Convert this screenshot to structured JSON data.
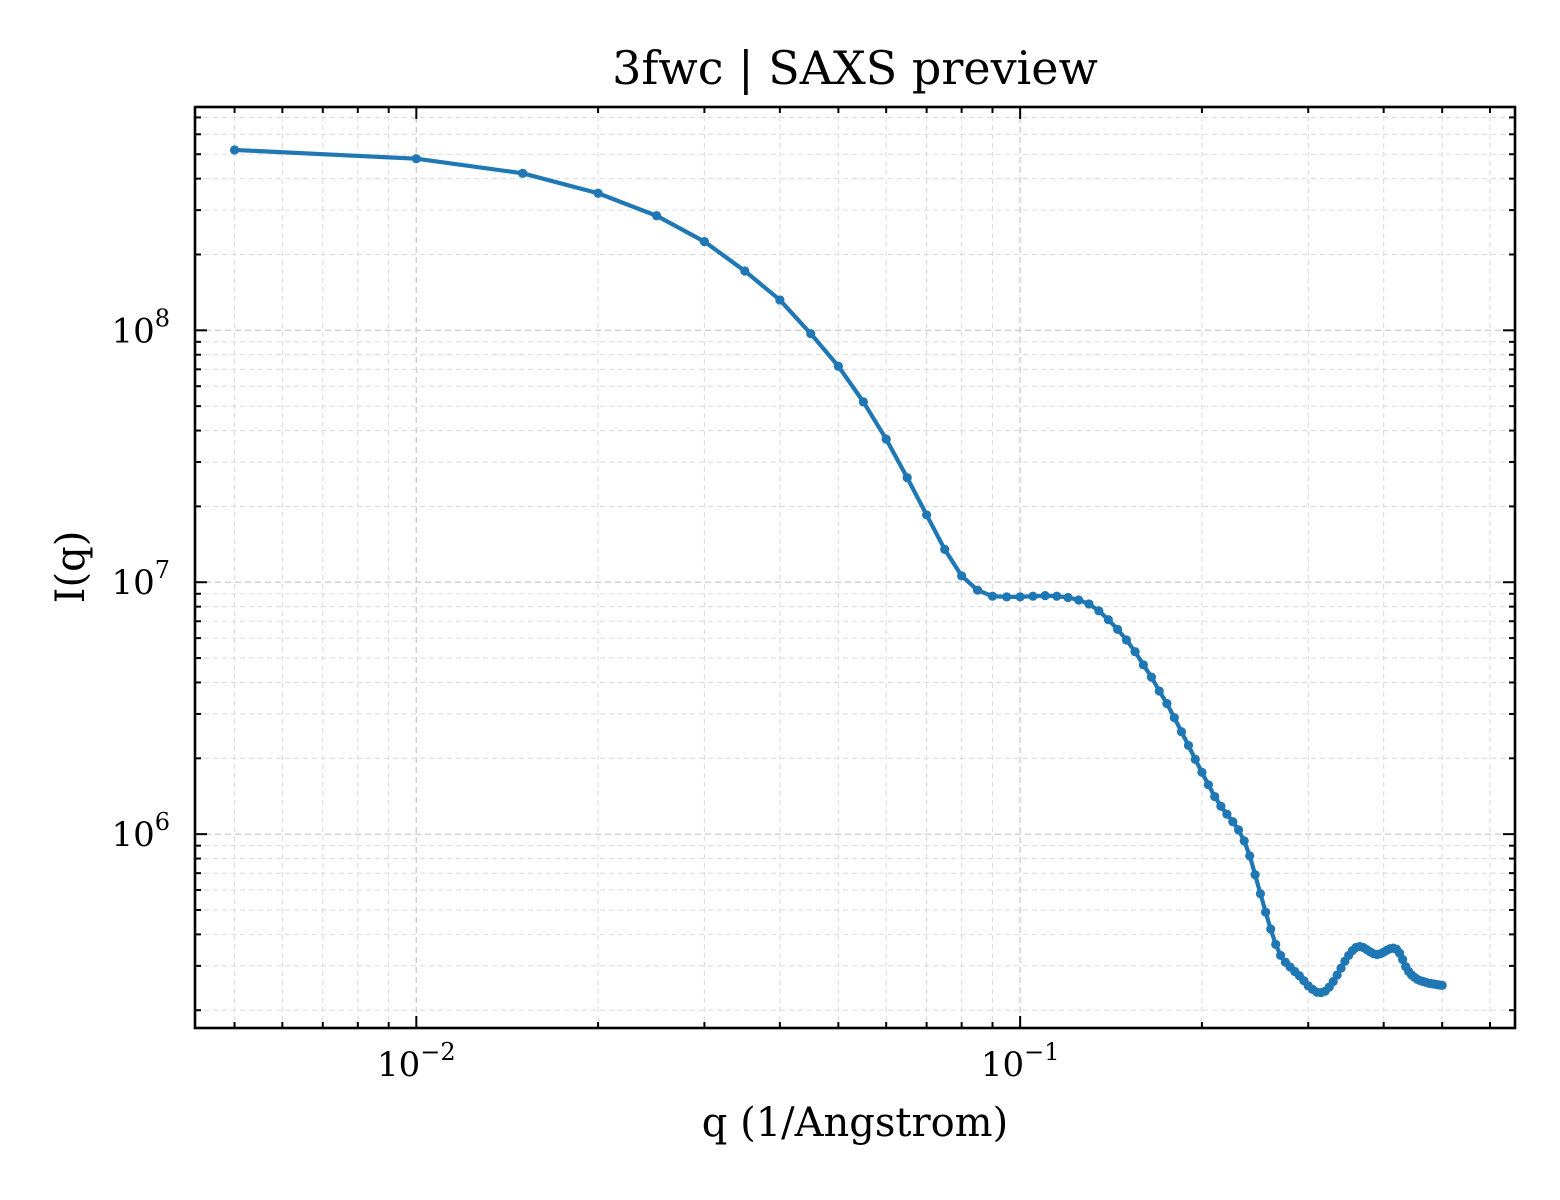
{
  "chart_data": {
    "type": "line",
    "title": "3fwc | SAXS preview",
    "xlabel": "q (1/Angstrom)",
    "ylabel": "I(q)",
    "xscale": "log",
    "yscale": "log",
    "xlim": [
      0.0043,
      0.66
    ],
    "ylim": [
      170000,
      770000000
    ],
    "grid": true,
    "x_tick_labels": [
      {
        "value": 0.01,
        "base": "10",
        "exp": "−2"
      },
      {
        "value": 0.1,
        "base": "10",
        "exp": "−1"
      }
    ],
    "y_tick_labels": [
      {
        "value": 1000000,
        "base": "10",
        "exp": "6"
      },
      {
        "value": 10000000,
        "base": "10",
        "exp": "7"
      },
      {
        "value": 100000000,
        "base": "10",
        "exp": "8"
      }
    ],
    "series_color": "#1f77b4",
    "series": [
      {
        "x": [
          0.005,
          0.01,
          0.015,
          0.02,
          0.025,
          0.03,
          0.035,
          0.04,
          0.045,
          0.05,
          0.055,
          0.06,
          0.065,
          0.07,
          0.075,
          0.08,
          0.085,
          0.09,
          0.095,
          0.1,
          0.105,
          0.11,
          0.115,
          0.12,
          0.125,
          0.13,
          0.135,
          0.14,
          0.145,
          0.15,
          0.155,
          0.16,
          0.165,
          0.17,
          0.175,
          0.18,
          0.185,
          0.19,
          0.195,
          0.2,
          0.205,
          0.21,
          0.215,
          0.22,
          0.225,
          0.23,
          0.235,
          0.24,
          0.245,
          0.25,
          0.255,
          0.26,
          0.265,
          0.27,
          0.275,
          0.28,
          0.285,
          0.29,
          0.295,
          0.3,
          0.305,
          0.31,
          0.315,
          0.32,
          0.325,
          0.33,
          0.335,
          0.34,
          0.345,
          0.35,
          0.355,
          0.36,
          0.365,
          0.37,
          0.375,
          0.38,
          0.385,
          0.39,
          0.395,
          0.4,
          0.405,
          0.41,
          0.415,
          0.42,
          0.425,
          0.43,
          0.435,
          0.44,
          0.445,
          0.45,
          0.455,
          0.46,
          0.465,
          0.47,
          0.475,
          0.48,
          0.485,
          0.49,
          0.495,
          0.5
        ],
        "y": [
          520000000,
          480000000,
          420000000,
          350000000,
          285000000,
          225000000,
          172000000,
          132000000,
          97000000,
          72000000,
          52000000,
          37000000,
          26000000,
          18500000,
          13500000,
          10600000,
          9300000,
          8800000,
          8750000,
          8750000,
          8800000,
          8850000,
          8800000,
          8700000,
          8500000,
          8200000,
          7700000,
          7100000,
          6500000,
          5900000,
          5300000,
          4700000,
          4200000,
          3700000,
          3300000,
          2900000,
          2550000,
          2250000,
          1980000,
          1760000,
          1570000,
          1410000,
          1290000,
          1200000,
          1120000,
          1040000,
          940000,
          820000,
          690000,
          580000,
          490000,
          420000,
          365000,
          330000,
          310000,
          297000,
          285000,
          274000,
          262000,
          250000,
          242000,
          236000,
          235000,
          238000,
          247000,
          260000,
          276000,
          294000,
          313000,
          330000,
          345000,
          355000,
          358000,
          355000,
          348000,
          341000,
          335000,
          333000,
          335000,
          340000,
          346000,
          351000,
          353000,
          349000,
          337000,
          318000,
          298000,
          285000,
          276000,
          270000,
          265000,
          262000,
          260000,
          258000,
          256000,
          255000,
          254000,
          253000,
          252000,
          251000
        ]
      }
    ]
  }
}
